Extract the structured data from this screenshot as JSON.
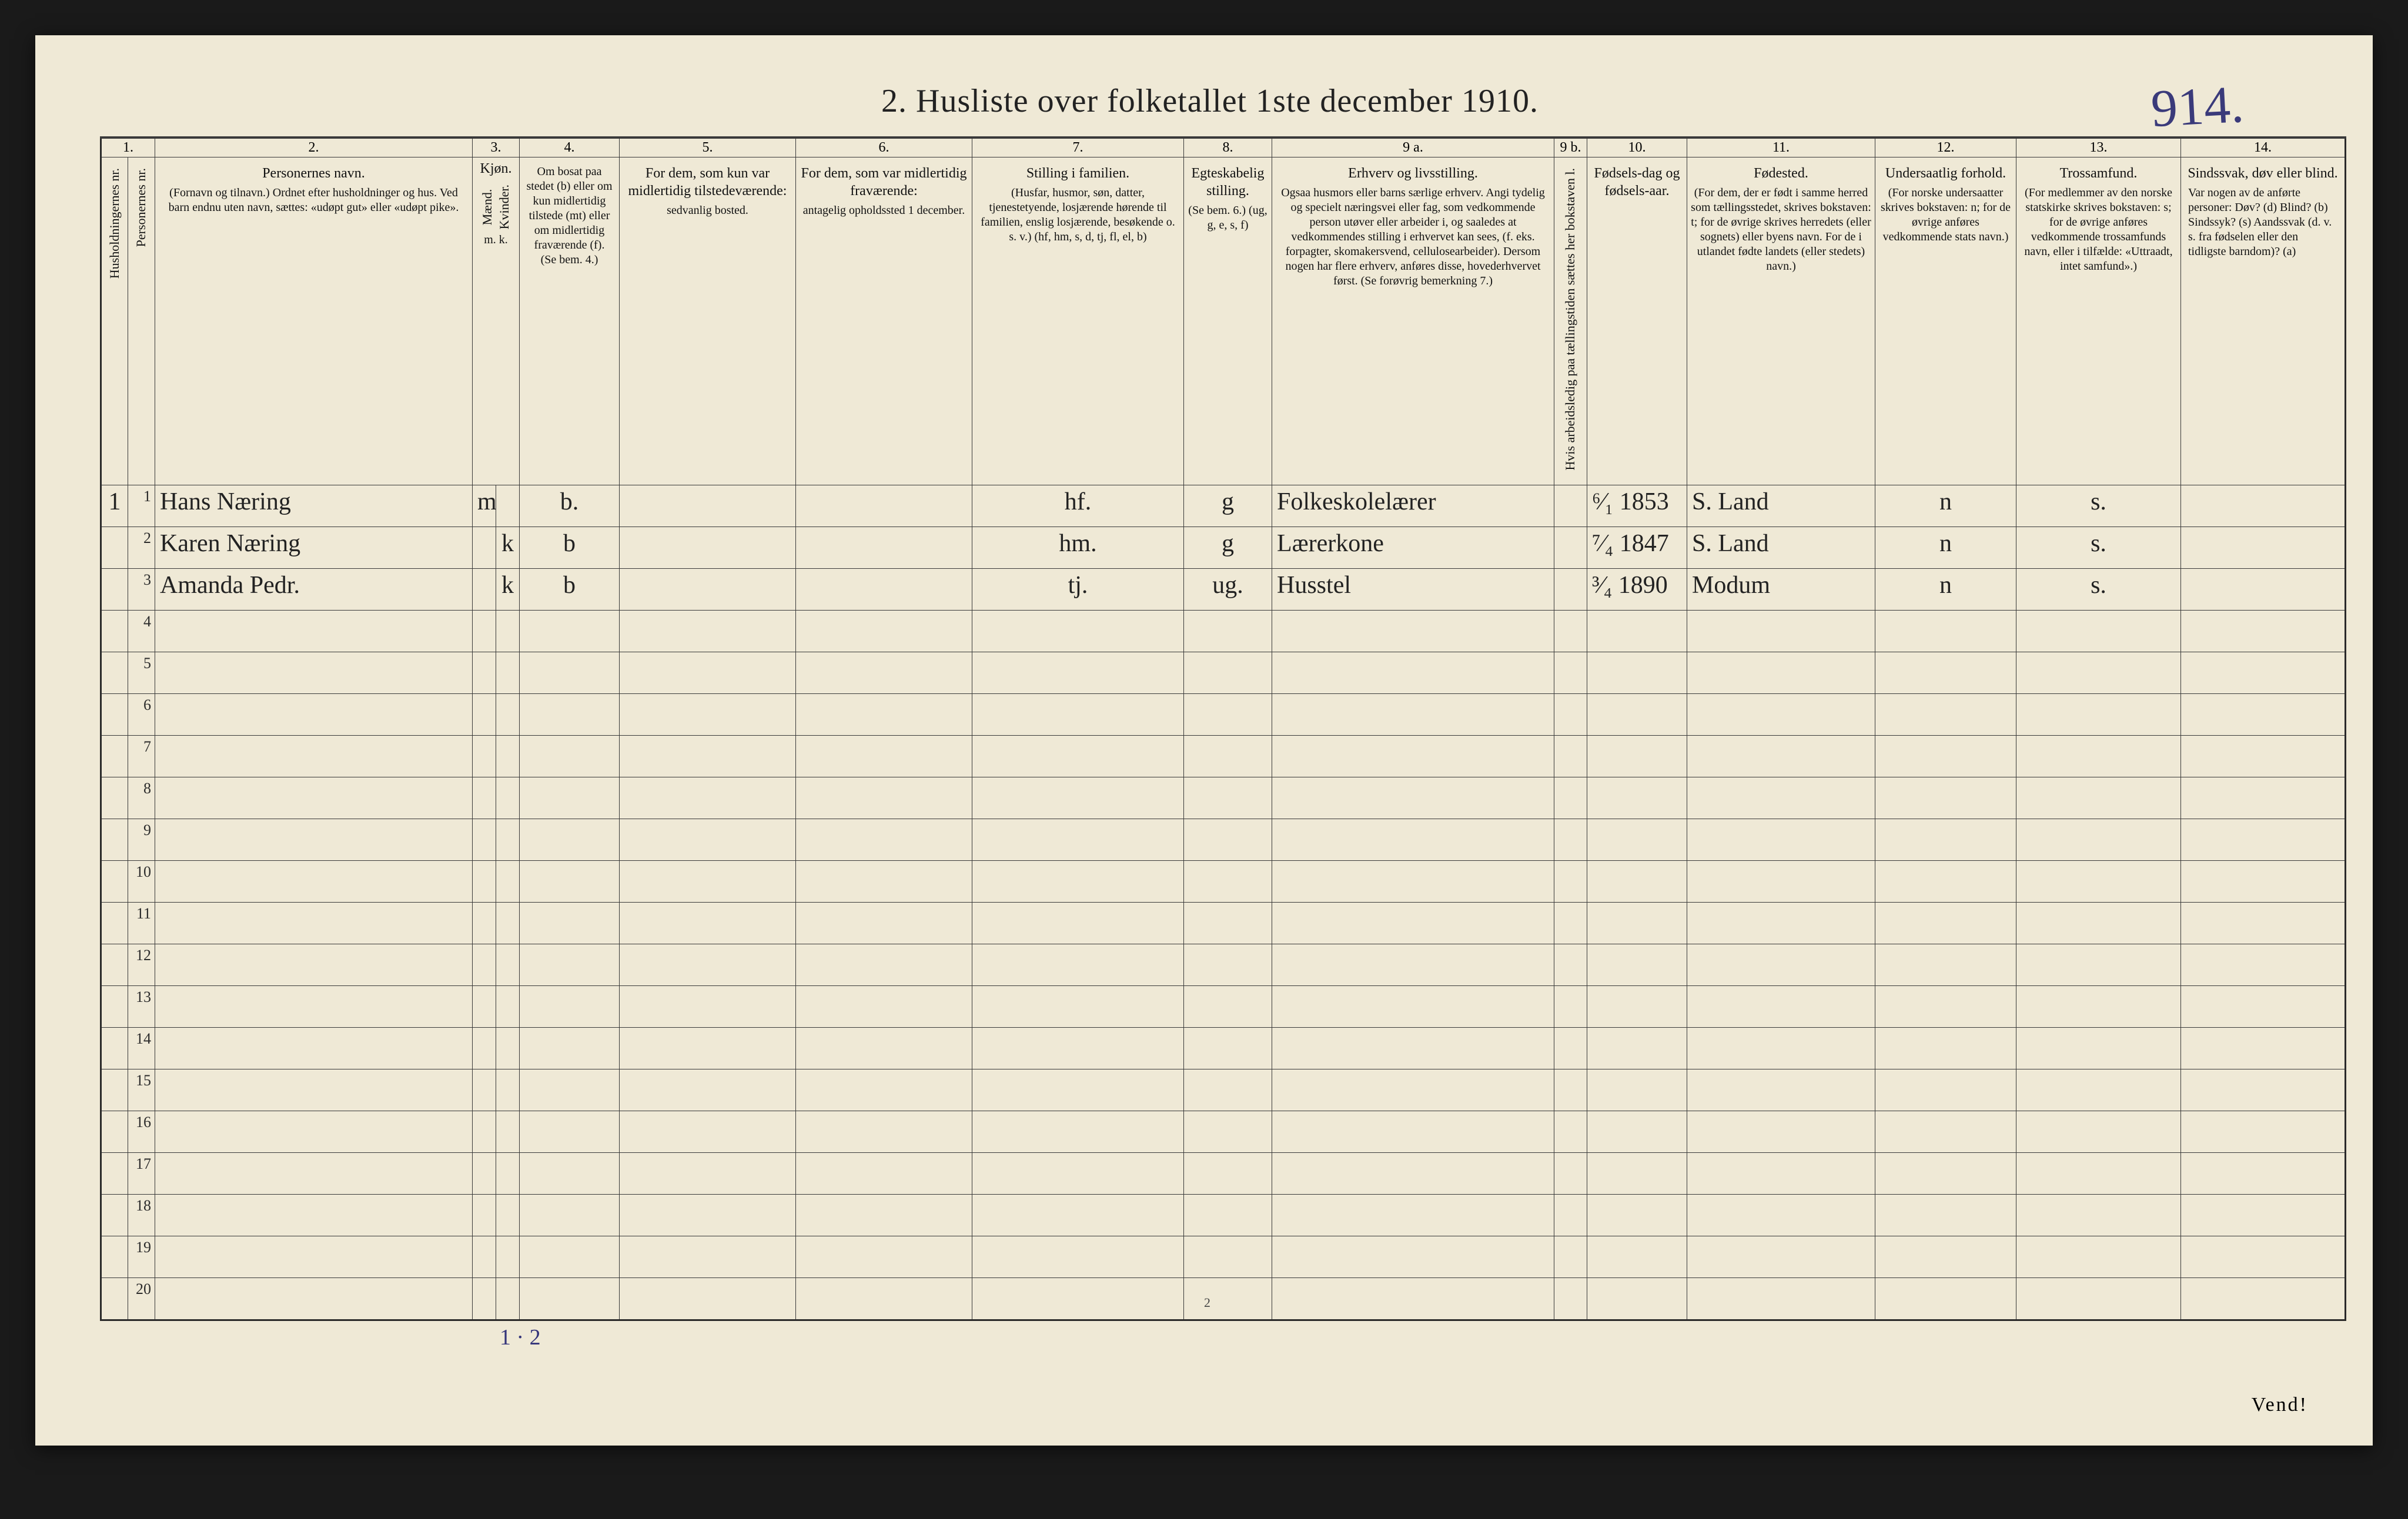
{
  "background_color": "#1a1a1a",
  "paper_color": "#efe9d6",
  "ink_color": "#222222",
  "hand_ink_color": "#2b2b2b",
  "pen_color": "#3a3a7a",
  "title": "2.  Husliste over folketallet 1ste december 1910.",
  "hand_page_number": "914.",
  "footer_text": "Vend!",
  "bottom_printed_page": "2",
  "below_table_note": "1 · 2",
  "colnums": [
    "1.",
    "2.",
    "3.",
    "4.",
    "5.",
    "6.",
    "7.",
    "8.",
    "9 a.",
    "9 b.",
    "10.",
    "11.",
    "12.",
    "13.",
    "14."
  ],
  "headers": {
    "c1a": "Husholdningernes nr.",
    "c1b": "Personernes nr.",
    "c2_title": "Personernes navn.",
    "c2_body": "(Fornavn og tilnavn.)\nOrdnet efter husholdninger og hus.\nVed barn endnu uten navn, sættes: «udøpt gut» eller «udøpt pike».",
    "c3_title": "Kjøn.",
    "c3a": "Mænd.",
    "c3b": "Kvinder.",
    "c3_foot": "m.  k.",
    "c4_title": "Om bosat paa stedet (b) eller om kun midlertidig tilstede (mt) eller om midlertidig fraværende (f).",
    "c4_foot": "(Se bem. 4.)",
    "c5_title": "For dem, som kun var midlertidig tilstedeværende:",
    "c5_body": "sedvanlig bosted.",
    "c6_title": "For dem, som var midlertidig fraværende:",
    "c6_body": "antagelig opholdssted 1 december.",
    "c7_title": "Stilling i familien.",
    "c7_body": "(Husfar, husmor, søn, datter, tjenestetyende, losjærende hørende til familien, enslig losjærende, besøkende o. s. v.)\n(hf, hm, s, d, tj, fl, el, b)",
    "c8_title": "Egteskabelig stilling.",
    "c8_body": "(Se bem. 6.)\n(ug, g, e, s, f)",
    "c9a_title": "Erhverv og livsstilling.",
    "c9a_body": "Ogsaa husmors eller barns særlige erhverv. Angi tydelig og specielt næringsvei eller fag, som vedkommende person utøver eller arbeider i, og saaledes at vedkommendes stilling i erhvervet kan sees, (f. eks. forpagter, skomakersvend, cellulosearbeider). Dersom nogen har flere erhverv, anføres disse, hovederhvervet først.\n(Se forøvrig bemerkning 7.)",
    "c9b": "Hvis arbeidsledig paa tællingstiden sættes her bokstaven l.",
    "c10_title": "Fødsels-dag og fødsels-aar.",
    "c11_title": "Fødested.",
    "c11_body": "(For dem, der er født i samme herred som tællingsstedet, skrives bokstaven: t; for de øvrige skrives herredets (eller sognets) eller byens navn. For de i utlandet fødte landets (eller stedets) navn.)",
    "c12_title": "Undersaatlig forhold.",
    "c12_body": "(For norske undersaatter skrives bokstaven: n; for de øvrige anføres vedkommende stats navn.)",
    "c13_title": "Trossamfund.",
    "c13_body": "(For medlemmer av den norske statskirke skrives bokstaven: s; for de øvrige anføres vedkommende trossamfunds navn, eller i tilfælde: «Uttraadt, intet samfund».)",
    "c14_title": "Sindssvak, døv eller blind.",
    "c14_body": "Var nogen av de anførte personer:\nDøv?        (d)\nBlind?       (b)\nSindssyk?  (s)\nAandssvak (d. v. s. fra fødselen eller den tidligste barndom)?  (a)"
  },
  "rows": [
    {
      "hh": "1",
      "pn": "1",
      "name": "Hans Næring",
      "sex_m": "m",
      "sex_k": "",
      "status": "b.",
      "c5": "",
      "c6": "",
      "famrole": "hf.",
      "marital": "g",
      "occupation": "Folkeskolelærer",
      "c9b": "",
      "birth": "⁶⁄₁ 1853",
      "birthplace": "S. Land",
      "nation": "n",
      "faith": "s.",
      "c14": ""
    },
    {
      "hh": "",
      "pn": "2",
      "name": "Karen Næring",
      "sex_m": "",
      "sex_k": "k",
      "status": "b",
      "c5": "",
      "c6": "",
      "famrole": "hm.",
      "marital": "g",
      "occupation": "Lærerkone",
      "c9b": "",
      "birth": "⁷⁄₄ 1847",
      "birthplace": "S. Land",
      "nation": "n",
      "faith": "s.",
      "c14": ""
    },
    {
      "hh": "",
      "pn": "3",
      "name": "Amanda Pedr.",
      "sex_m": "",
      "sex_k": "k",
      "status": "b",
      "c5": "",
      "c6": "",
      "famrole": "tj.",
      "marital": "ug.",
      "occupation": "Husstel",
      "c9b": "",
      "birth": "³⁄₄ 1890",
      "birthplace": "Modum",
      "nation": "n",
      "faith": "s.",
      "c14": ""
    }
  ],
  "empty_rows_from": 4,
  "empty_rows_to": 20
}
